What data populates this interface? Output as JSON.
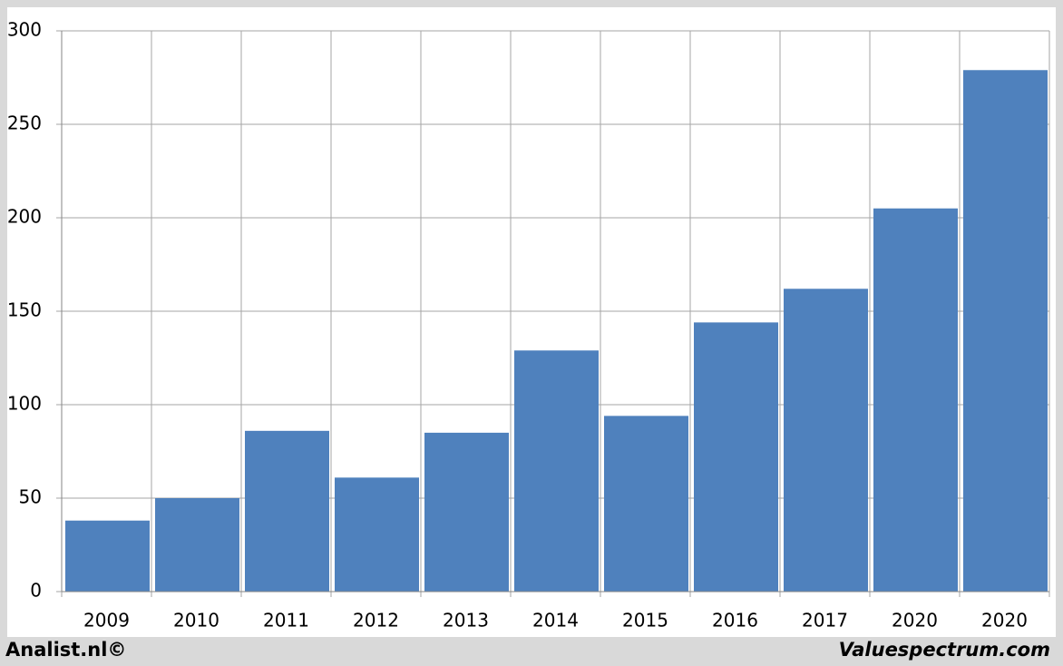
{
  "chart_data": {
    "type": "bar",
    "categories": [
      "2009",
      "2010",
      "2011",
      "2012",
      "2013",
      "2014",
      "2015",
      "2016",
      "2017",
      "2020",
      "2020"
    ],
    "values": [
      38,
      50,
      86,
      61,
      85,
      129,
      94,
      144,
      162,
      205,
      279
    ],
    "color": "#4f81bd",
    "ylim": [
      0,
      300
    ],
    "yticks": [
      0,
      50,
      100,
      150,
      200,
      250,
      300
    ],
    "grid": true
  },
  "footer": {
    "left": "Analist.nl©",
    "right": "Valuespectrum.com"
  }
}
